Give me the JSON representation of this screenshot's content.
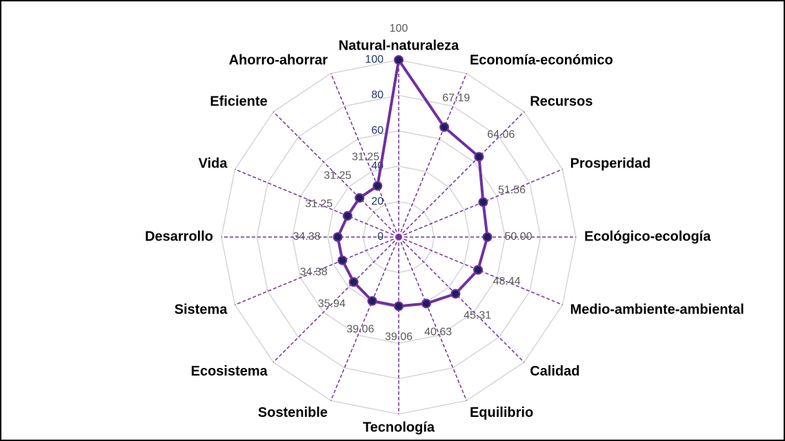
{
  "chart_data": {
    "type": "radar",
    "categories": [
      "Natural-naturaleza",
      "Economía-económico",
      "Recursos",
      "Prosperidad",
      "Ecológico-ecología",
      "Medio-ambiente-ambiental",
      "Calidad",
      "Equilibrio",
      "Tecnología",
      "Sostenible",
      "Ecosistema",
      "Sistema",
      "Desarrollo",
      "Vida",
      "Eficiente",
      "Ahorro-ahorrar"
    ],
    "values": [
      100,
      67.19,
      64.06,
      51.56,
      50,
      48.44,
      45.31,
      40.63,
      39.06,
      39.06,
      35.94,
      34.38,
      34.38,
      31.25,
      31.25,
      31.25
    ],
    "value_labels": [
      "100",
      "67.19",
      "64.06",
      "51.56",
      "50.00",
      "48.44",
      "45.31",
      "40.63",
      "39.06",
      "39.06",
      "35.94",
      "34.38",
      "34.38",
      "31.25",
      "31.25",
      "31.25"
    ],
    "color": "#7030a0",
    "marker_color": "#1f1f5c",
    "ylim": [
      0,
      100
    ],
    "yticks": [
      0,
      20,
      40,
      60,
      80,
      100
    ],
    "grid": true
  }
}
